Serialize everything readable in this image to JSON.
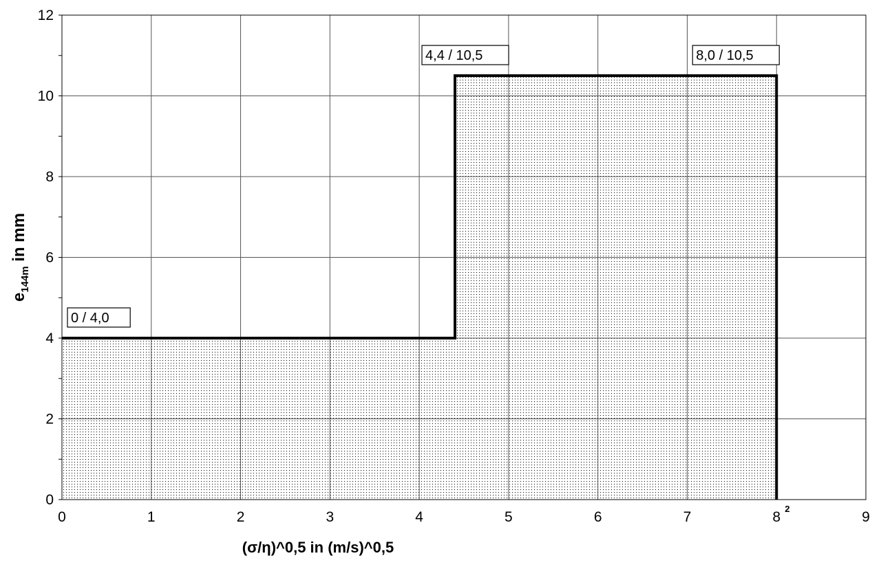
{
  "chart_data": {
    "type": "area",
    "xlabel": "(σ/η)^0,5 in (m/s)^0,5",
    "ylabel": {
      "main": "e",
      "subscript": "144m",
      "unit": " in mm"
    },
    "xlim": [
      0,
      9
    ],
    "ylim": [
      0,
      12
    ],
    "xticks": [
      0,
      1,
      2,
      3,
      4,
      5,
      6,
      7,
      8,
      9
    ],
    "yticks": [
      0,
      2,
      4,
      6,
      8,
      10,
      12
    ],
    "grid": true,
    "series": [
      {
        "points": [
          {
            "x": 0,
            "y": 4.0
          },
          {
            "x": 4.4,
            "y": 4.0
          },
          {
            "x": 4.4,
            "y": 10.5
          },
          {
            "x": 8.0,
            "y": 10.5
          },
          {
            "x": 8.0,
            "y": 0
          }
        ]
      }
    ],
    "annotations": [
      {
        "text": "0 / 4,0",
        "x": 0,
        "y": 4.0
      },
      {
        "text": "4,4 / 10,5",
        "x": 4.4,
        "y": 10.5
      },
      {
        "text": "8,0 / 10,5",
        "x": 8.0,
        "y": 10.5
      }
    ],
    "superscript_note": "2",
    "fill_pattern": "dotted",
    "line_color": "#000000"
  }
}
